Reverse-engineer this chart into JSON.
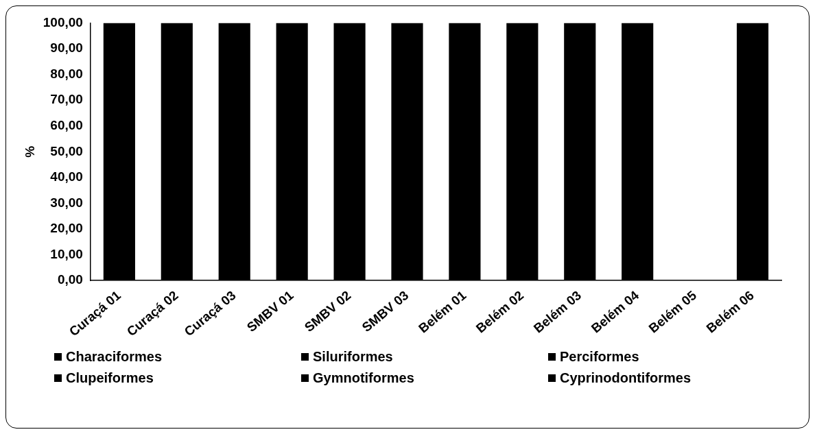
{
  "chart_data": {
    "type": "bar",
    "stacked": true,
    "ylabel": "%",
    "categories": [
      "Curaçá 01",
      "Curaçá 02",
      "Curaçá 03",
      "SMBV 01",
      "SMBV 02",
      "SMBV 03",
      "Belém 01",
      "Belém 02",
      "Belém 03",
      "Belém 04",
      "Belém 05",
      "Belém 06"
    ],
    "values": [
      100,
      100,
      100,
      100,
      100,
      100,
      100,
      100,
      100,
      100,
      0,
      100
    ],
    "color": "#000000",
    "series": [
      {
        "name": "Characiformes",
        "color": "#000000",
        "values": [
          null,
          null,
          null,
          null,
          null,
          null,
          null,
          null,
          null,
          null,
          null,
          null
        ]
      },
      {
        "name": "Siluriformes",
        "color": "#000000",
        "values": [
          null,
          null,
          null,
          null,
          null,
          null,
          null,
          null,
          null,
          null,
          null,
          null
        ]
      },
      {
        "name": "Perciformes",
        "color": "#000000",
        "values": [
          null,
          null,
          null,
          null,
          null,
          null,
          null,
          null,
          null,
          null,
          null,
          null
        ]
      },
      {
        "name": "Clupeiformes",
        "color": "#000000",
        "values": [
          null,
          null,
          null,
          null,
          null,
          null,
          null,
          null,
          null,
          null,
          null,
          null
        ]
      },
      {
        "name": "Gymnotiformes",
        "color": "#000000",
        "values": [
          null,
          null,
          null,
          null,
          null,
          null,
          null,
          null,
          null,
          null,
          null,
          null
        ]
      },
      {
        "name": "Cyprinodontiformes",
        "color": "#000000",
        "values": [
          null,
          null,
          null,
          null,
          null,
          null,
          null,
          null,
          null,
          null,
          null,
          null
        ]
      }
    ],
    "ylim": [
      0,
      100
    ],
    "yticks": [
      {
        "value": 0,
        "label": "0,00"
      },
      {
        "value": 10,
        "label": "10,00"
      },
      {
        "value": 20,
        "label": "20,00"
      },
      {
        "value": 30,
        "label": "30,00"
      },
      {
        "value": 40,
        "label": "40,00"
      },
      {
        "value": 50,
        "label": "50,00"
      },
      {
        "value": 60,
        "label": "60,00"
      },
      {
        "value": 70,
        "label": "70,00"
      },
      {
        "value": 80,
        "label": "80,00"
      },
      {
        "value": 90,
        "label": "90,00"
      },
      {
        "value": 100,
        "label": "100,00"
      }
    ],
    "grid": false,
    "legend": "bottom"
  }
}
